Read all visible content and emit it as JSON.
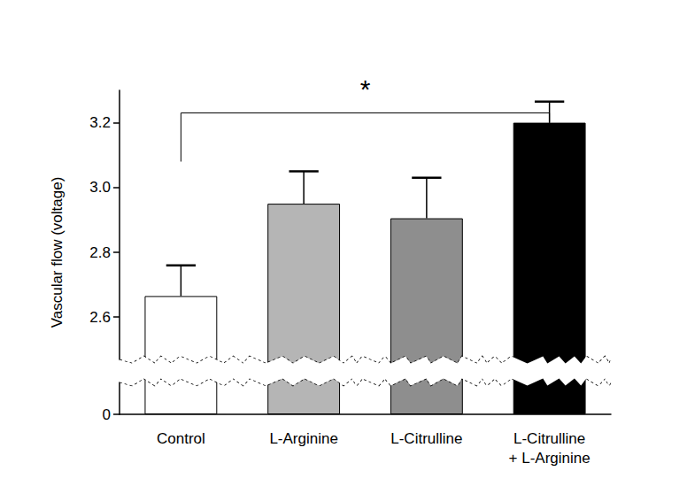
{
  "chart_data": {
    "type": "bar",
    "categories": [
      "Control",
      "L-Arginine",
      "L-Citrulline",
      "L-Citrulline\n+ L-Arginine"
    ],
    "values": [
      2.665,
      2.95,
      2.905,
      3.2
    ],
    "errors": [
      0.095,
      0.1,
      0.125,
      0.065
    ],
    "colors": [
      "#ffffff",
      "#b5b5b5",
      "#8e8e8e",
      "#000000"
    ],
    "y_label": "Vascular flow (voltage)",
    "ylim": [
      0,
      3.3
    ],
    "yticks": [
      0,
      2.6,
      2.8,
      {
        "value": 3,
        "label": "3.0"
      },
      3.2
    ],
    "y_break": [
      0.1,
      2.47
    ],
    "grid": false,
    "annotations": [
      {
        "text": "*",
        "from": "Control",
        "to": "L-Citrulline\n+ L-Arginine",
        "y": 3.23,
        "leg_end": 3.08
      }
    ]
  }
}
